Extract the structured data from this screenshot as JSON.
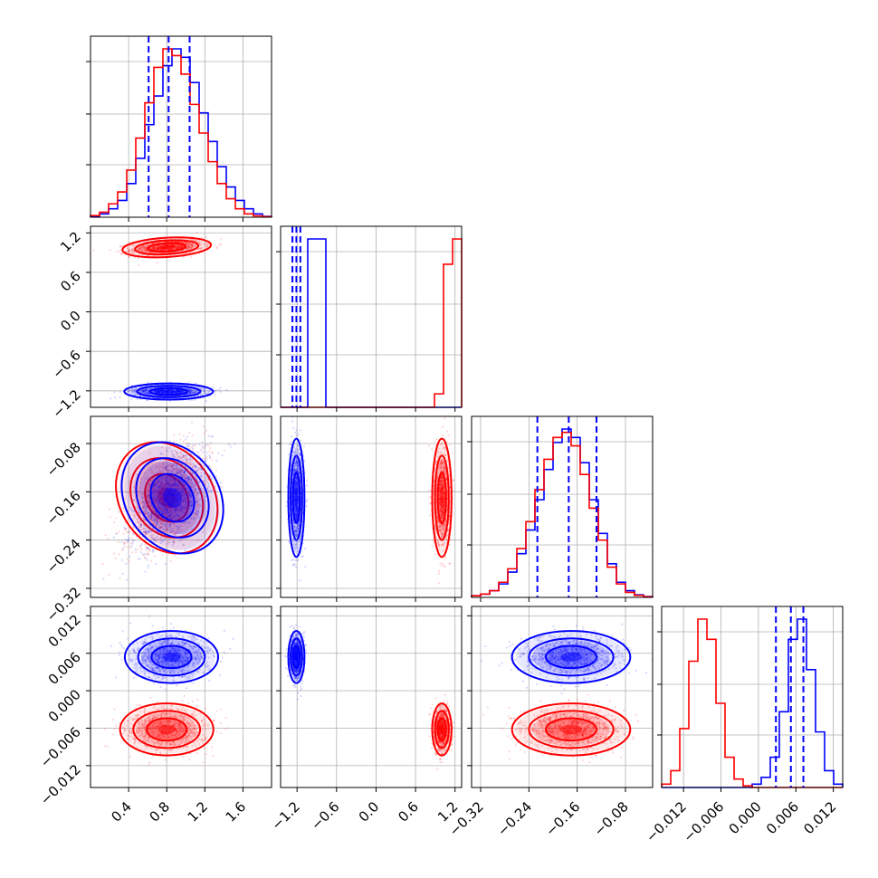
{
  "chart_data": {
    "type": "corner",
    "series": [
      {
        "name": "",
        "color": "#0000ff"
      },
      {
        "name": "",
        "color": "#ff0000"
      }
    ],
    "parameters": [
      {
        "ticks": [
          0.4,
          0.8,
          1.2,
          1.6
        ],
        "tick_labels": [
          "0.4",
          "0.8",
          "1.2",
          "1.6"
        ],
        "range": [
          0.0,
          1.9
        ]
      },
      {
        "ticks": [
          -1.2,
          -0.6,
          0.0,
          0.6,
          1.2
        ],
        "tick_labels": [
          "−1.2",
          "−0.6",
          "0.0",
          "0.6",
          "1.2"
        ],
        "range": [
          -1.45,
          1.3
        ]
      },
      {
        "ticks": [
          -0.32,
          -0.24,
          -0.16,
          -0.08
        ],
        "tick_labels": [
          "−0.32",
          "−0.24",
          "−0.16",
          "−0.08"
        ],
        "range": [
          -0.335,
          -0.035
        ]
      },
      {
        "ticks": [
          -0.012,
          -0.006,
          0.0,
          0.006,
          0.012
        ],
        "tick_labels": [
          "−0.012",
          "−0.006",
          "0.000",
          "0.006",
          "0.012"
        ],
        "range": [
          -0.0155,
          0.0135
        ]
      }
    ],
    "histograms": [
      {
        "bins": 20,
        "blue": [
          0.5,
          2,
          5,
          10,
          20,
          35,
          55,
          72,
          90,
          100,
          95,
          80,
          62,
          45,
          30,
          18,
          10,
          5,
          2,
          0.5
        ],
        "red": [
          1,
          3,
          8,
          15,
          28,
          47,
          68,
          89,
          100,
          96,
          85,
          67,
          50,
          33,
          20,
          11,
          5,
          2,
          0.8,
          0.3
        ],
        "quantiles": [
          0.61,
          0.82,
          1.04
        ]
      },
      {
        "bins": 20,
        "blue": [
          0,
          0,
          0,
          100,
          100,
          0,
          0,
          0,
          0,
          0,
          0,
          0,
          0,
          0,
          0,
          0,
          0,
          0,
          0,
          0
        ],
        "red": [
          0,
          0,
          0,
          0,
          0,
          0,
          0,
          0,
          0,
          0,
          0,
          0,
          0,
          0,
          0,
          0,
          0,
          8,
          85,
          100
        ],
        "quantiles": [
          -1.27,
          -1.21,
          -1.15
        ]
      },
      {
        "bins": 20,
        "blue": [
          1,
          2,
          4,
          8,
          15,
          26,
          40,
          58,
          76,
          92,
          100,
          95,
          80,
          58,
          38,
          20,
          9,
          4,
          1.5,
          0.5
        ],
        "red": [
          1,
          2,
          4,
          9,
          17,
          29,
          45,
          64,
          82,
          95,
          98,
          90,
          73,
          53,
          34,
          18,
          8,
          3,
          1.2,
          0.4
        ],
        "quantiles": [
          -0.226,
          -0.174,
          -0.128
        ]
      },
      {
        "bins": 20,
        "blue": [
          0,
          0,
          0,
          0,
          0,
          0,
          0,
          0,
          0,
          0,
          2,
          6,
          18,
          45,
          88,
          100,
          70,
          33,
          10,
          2
        ],
        "red": [
          2,
          10,
          35,
          75,
          100,
          88,
          50,
          18,
          5,
          1,
          0,
          0,
          0,
          0,
          0,
          0,
          0,
          0,
          0,
          0
        ],
        "quantiles": [
          0.0028,
          0.0052,
          0.0072
        ]
      }
    ],
    "scatter_blobs": [
      {
        "row": 1,
        "col": 0,
        "blue": {
          "mean": [
            0.82,
            -1.21
          ],
          "sd": [
            0.19,
            0.05
          ],
          "rho": 0.0
        },
        "red": {
          "mean": [
            0.8,
            0.98
          ],
          "sd": [
            0.19,
            0.06
          ],
          "rho": 0.3
        }
      },
      {
        "row": 2,
        "col": 0,
        "blue": {
          "mean": [
            0.86,
            -0.17
          ],
          "sd": [
            0.2,
            0.04
          ],
          "rho": 0.6
        },
        "red": {
          "mean": [
            0.8,
            -0.17
          ],
          "sd": [
            0.2,
            0.04
          ],
          "rho": 0.6
        }
      },
      {
        "row": 2,
        "col": 1,
        "blue": {
          "mean": [
            -1.21,
            -0.17
          ],
          "sd": [
            0.05,
            0.04
          ],
          "rho": 0.0
        },
        "red": {
          "mean": [
            1.0,
            -0.17
          ],
          "sd": [
            0.06,
            0.04
          ],
          "rho": 0.0
        }
      },
      {
        "row": 3,
        "col": 0,
        "blue": {
          "mean": [
            0.85,
            0.0054
          ],
          "sd": [
            0.2,
            0.0017
          ],
          "rho": 0.0
        },
        "red": {
          "mean": [
            0.8,
            -0.0062
          ],
          "sd": [
            0.2,
            0.0017
          ],
          "rho": 0.0
        }
      },
      {
        "row": 3,
        "col": 1,
        "blue": {
          "mean": [
            -1.21,
            0.0054
          ],
          "sd": [
            0.05,
            0.0017
          ],
          "rho": 0.0
        },
        "red": {
          "mean": [
            1.0,
            -0.0062
          ],
          "sd": [
            0.06,
            0.0017
          ],
          "rho": 0.0
        }
      },
      {
        "row": 3,
        "col": 2,
        "blue": {
          "mean": [
            -0.17,
            0.0054
          ],
          "sd": [
            0.04,
            0.0017
          ],
          "rho": 0.0
        },
        "red": {
          "mean": [
            -0.17,
            -0.0062
          ],
          "sd": [
            0.04,
            0.0017
          ],
          "rho": 0.0
        }
      }
    ]
  }
}
